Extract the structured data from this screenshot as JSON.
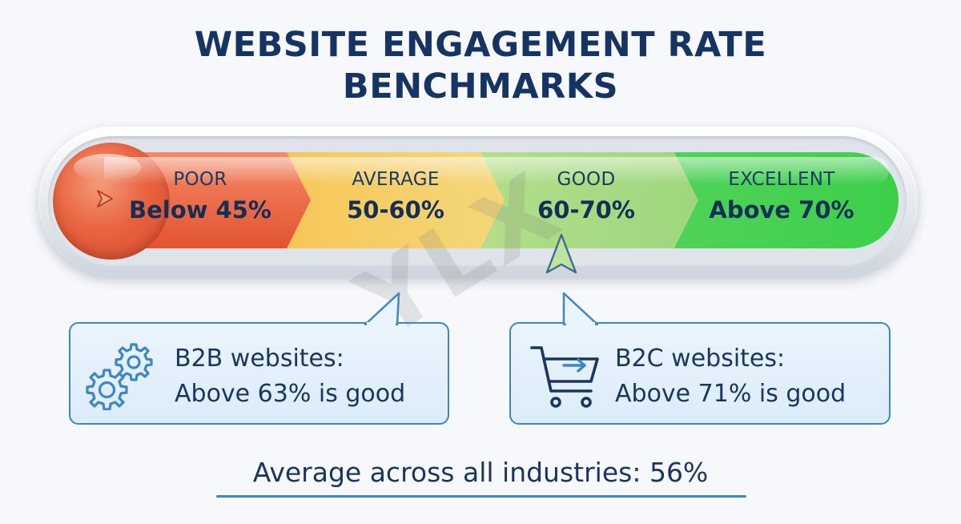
{
  "title": {
    "line1": "WEBSITE ENGAGEMENT RATE",
    "line2": "BENCHMARKS"
  },
  "segments": [
    {
      "label": "POOR",
      "value": "Below 45%",
      "color": "#e8643f"
    },
    {
      "label": "AVERAGE",
      "value": "50-60%",
      "color": "#f5c24a"
    },
    {
      "label": "GOOD",
      "value": "60-70%",
      "color": "#b9dc8a"
    },
    {
      "label": "EXCELLENT",
      "value": "Above 70%",
      "color": "#43d35a"
    }
  ],
  "callouts": {
    "b2b": {
      "line1": "B2B websites:",
      "line2": "Above 63% is good",
      "icon": "gears-icon"
    },
    "b2c": {
      "line1": "B2C websites:",
      "line2": "Above 71% is good",
      "icon": "shopping-cart-icon"
    }
  },
  "footer": "Average across all industries: 56%",
  "watermark": "YLX",
  "colors": {
    "title": "#163463",
    "accent_blue": "#3f86c4",
    "callout_bg": "#e3f0fb"
  }
}
